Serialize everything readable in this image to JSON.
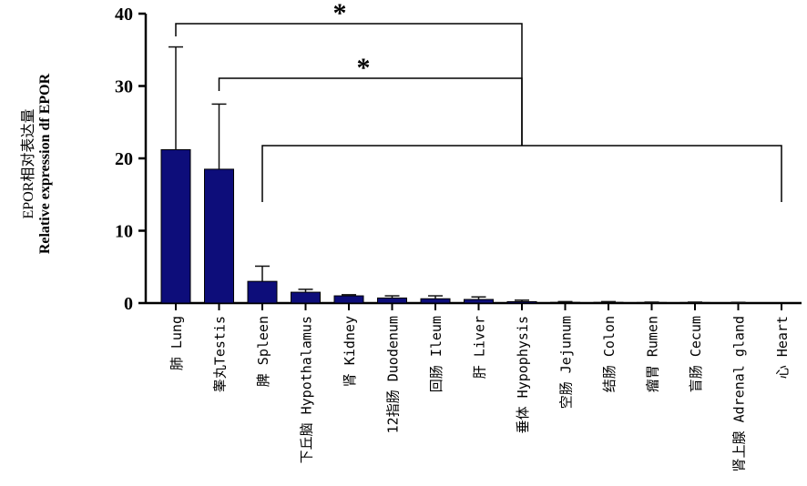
{
  "chart_data": {
    "type": "bar",
    "ylabel_line1": "EPOR相对表达量",
    "ylabel_line2": "Relative expression df EPOR",
    "ylim": [
      0,
      40
    ],
    "yticks": [
      "0",
      "10",
      "20",
      "30",
      "40"
    ],
    "categories": [
      "肺 Lung",
      "睾丸Testis",
      "脾 Spleen",
      "下丘脑 Hypothalamus",
      "肾 Kidney",
      "12指肠 Duodenum",
      "回肠 Ileum",
      "肝 Liver",
      "垂体 Hypophysis",
      "空肠 Jejunum",
      "结肠 Colon",
      "瘤胃 Rumen",
      "盲肠 Cecum",
      "肾上腺 Adrenal gland",
      "心 Heart"
    ],
    "values": [
      21.2,
      18.5,
      3.0,
      1.5,
      1.0,
      0.7,
      0.6,
      0.5,
      0.2,
      0.1,
      0.1,
      0.08,
      0.08,
      0.05,
      0.0
    ],
    "errors": [
      14.2,
      9.0,
      2.1,
      0.4,
      0.15,
      0.3,
      0.4,
      0.35,
      0.2,
      0.1,
      0.1,
      0.05,
      0.05,
      0.05,
      0.0
    ],
    "significance": [
      {
        "from": 0,
        "to": 8,
        "label": "*"
      },
      {
        "from": 1,
        "to": 8,
        "label": "*"
      },
      {
        "from": 2,
        "to": 14,
        "label": ""
      }
    ],
    "bar_color": "#0d0d7a",
    "grid": false
  }
}
